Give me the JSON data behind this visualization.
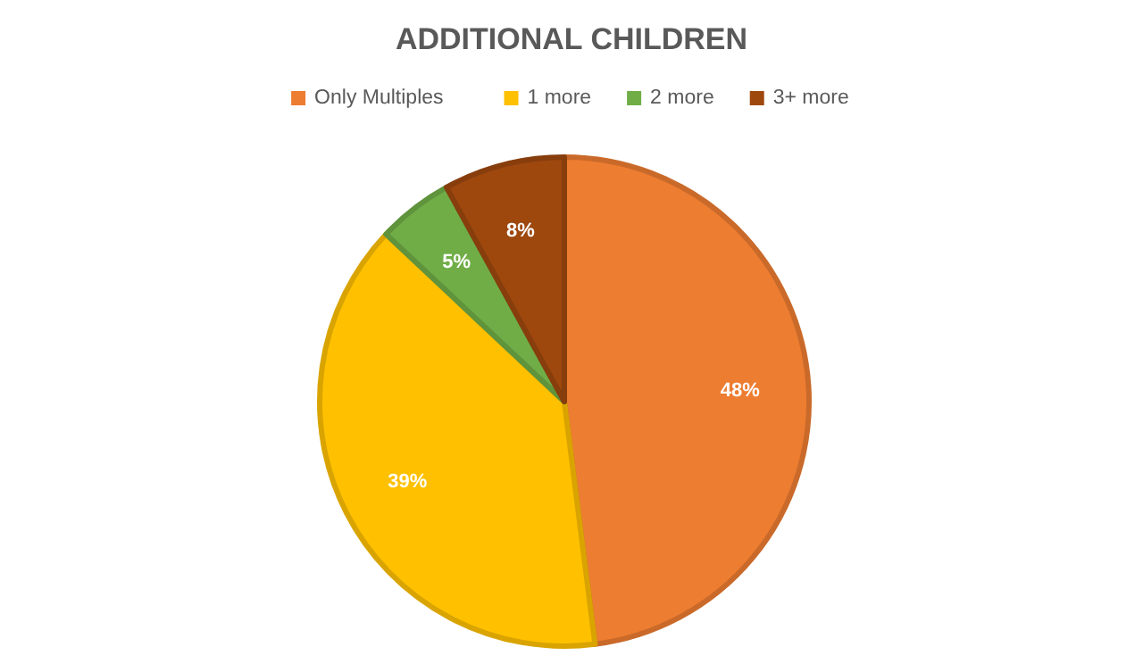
{
  "chart_data": {
    "type": "pie",
    "title": "ADDITIONAL CHILDREN",
    "categories": [
      "Only Multiples",
      "1 more",
      "2 more",
      "3+ more"
    ],
    "values": [
      48,
      39,
      5,
      8
    ],
    "colors": [
      "#ed7d31",
      "#ffc000",
      "#70ad47",
      "#9e480e"
    ],
    "value_labels": [
      "48%",
      "39%",
      "5%",
      "8%"
    ],
    "legend": "top"
  }
}
